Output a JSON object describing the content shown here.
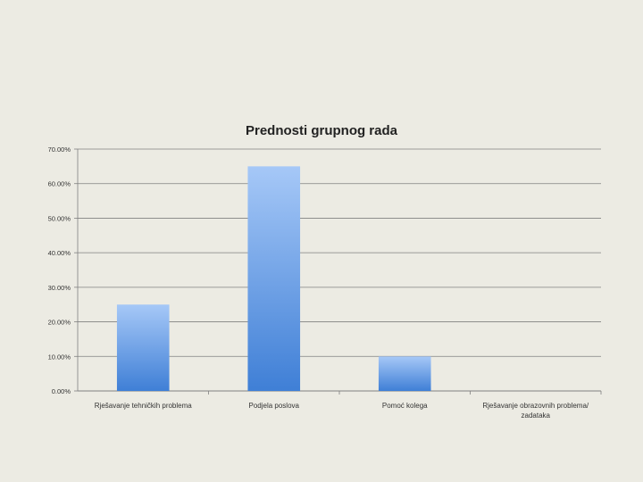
{
  "chart_data": {
    "type": "bar",
    "title": "Prednosti grupnog rada",
    "categories": [
      [
        "Rješavanje tehničkih problema"
      ],
      [
        "Podjela poslova"
      ],
      [
        "Pomoć kolega"
      ],
      [
        "Rješavanje obrazovnih problema/",
        "zadataka"
      ]
    ],
    "values": [
      25,
      65,
      10,
      0
    ],
    "y_tick_labels": [
      "0.00%",
      "10.00%",
      "20.00%",
      "30.00%",
      "40.00%",
      "50.00%",
      "60.00%",
      "70.00%"
    ],
    "ylim": [
      0,
      70
    ],
    "grid": true,
    "colors": {
      "bar_top": "#a6c8f7",
      "bar_bottom": "#3f7fd6",
      "grid": "#808080",
      "background": "#ecebe3"
    }
  }
}
